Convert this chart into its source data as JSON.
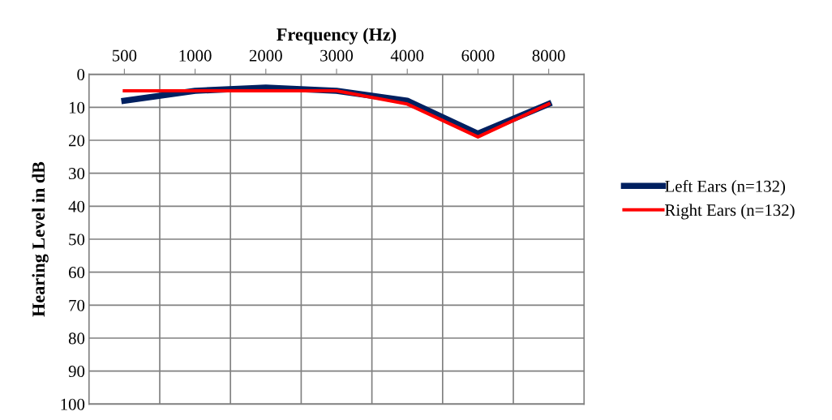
{
  "chart_data": {
    "type": "line",
    "xlabel": "Frequency (Hz)",
    "ylabel": "Hearing Level in dB",
    "categories": [
      "500",
      "1000",
      "2000",
      "3000",
      "4000",
      "6000",
      "8000"
    ],
    "series": [
      {
        "name": "Left Ears (n=132)",
        "color": "#002060",
        "values": [
          8,
          5,
          4,
          5,
          8,
          18,
          9
        ]
      },
      {
        "name": "Right Ears (n=132)",
        "color": "#ff0000",
        "values": [
          5,
          5,
          5,
          5,
          9,
          19,
          9
        ]
      }
    ],
    "ylim": [
      100,
      0
    ],
    "yticks": [
      0,
      10,
      20,
      30,
      40,
      50,
      60,
      70,
      80,
      90,
      100
    ],
    "grid": true,
    "legend": "right",
    "marker": "none",
    "line_style": "solid"
  }
}
